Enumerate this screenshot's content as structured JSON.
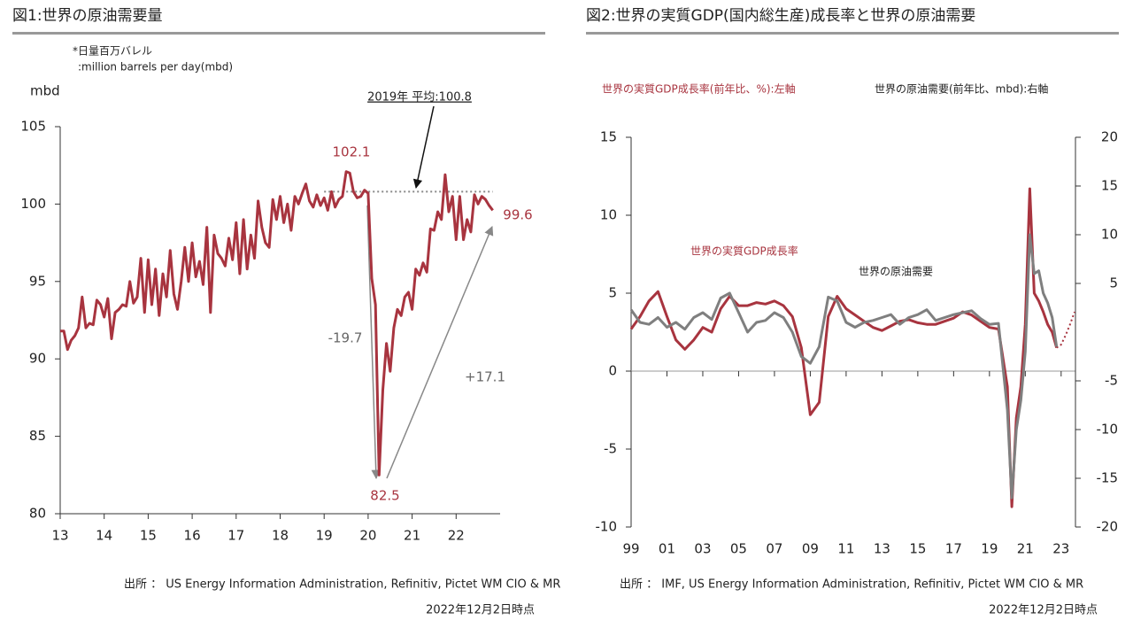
{
  "chart_data": [
    {
      "type": "line",
      "title": "図1:世界の原油需要量",
      "note_lines": [
        "*日量百万バレル",
        ":million barrels per day(mbd)"
      ],
      "ylabel": "mbd",
      "x": [
        2013.0,
        2013.083,
        2013.167,
        2013.25,
        2013.333,
        2013.417,
        2013.5,
        2013.583,
        2013.667,
        2013.75,
        2013.833,
        2013.917,
        2014.0,
        2014.083,
        2014.167,
        2014.25,
        2014.333,
        2014.417,
        2014.5,
        2014.583,
        2014.667,
        2014.75,
        2014.833,
        2014.917,
        2015.0,
        2015.083,
        2015.167,
        2015.25,
        2015.333,
        2015.417,
        2015.5,
        2015.583,
        2015.667,
        2015.75,
        2015.833,
        2015.917,
        2016.0,
        2016.083,
        2016.167,
        2016.25,
        2016.333,
        2016.417,
        2016.5,
        2016.583,
        2016.667,
        2016.75,
        2016.833,
        2016.917,
        2017.0,
        2017.083,
        2017.167,
        2017.25,
        2017.333,
        2017.417,
        2017.5,
        2017.583,
        2017.667,
        2017.75,
        2017.833,
        2017.917,
        2018.0,
        2018.083,
        2018.167,
        2018.25,
        2018.333,
        2018.417,
        2018.5,
        2018.583,
        2018.667,
        2018.75,
        2018.833,
        2018.917,
        2019.0,
        2019.083,
        2019.167,
        2019.25,
        2019.333,
        2019.417,
        2019.5,
        2019.583,
        2019.667,
        2019.75,
        2019.833,
        2019.917,
        2020.0,
        2020.083,
        2020.167,
        2020.25,
        2020.333,
        2020.417,
        2020.5,
        2020.583,
        2020.667,
        2020.75,
        2020.833,
        2020.917,
        2021.0,
        2021.083,
        2021.167,
        2021.25,
        2021.333,
        2021.417,
        2021.5,
        2021.583,
        2021.667,
        2021.75,
        2021.833,
        2021.917,
        2022.0,
        2022.083,
        2022.167,
        2022.25,
        2022.333,
        2022.417,
        2022.5,
        2022.583,
        2022.667,
        2022.75,
        2022.833
      ],
      "series": [
        {
          "color": "#a8343f",
          "values": [
            91.8,
            91.8,
            90.6,
            91.2,
            91.5,
            92.0,
            94.0,
            92.0,
            92.3,
            92.2,
            93.8,
            93.5,
            92.7,
            93.9,
            91.3,
            93.0,
            93.2,
            93.5,
            93.4,
            95.0,
            93.6,
            94.0,
            96.5,
            93.0,
            96.4,
            93.5,
            95.8,
            92.8,
            95.5,
            94.0,
            97.0,
            94.2,
            93.2,
            95.0,
            97.2,
            95.0,
            97.5,
            95.3,
            96.3,
            94.8,
            98.5,
            93.0,
            98.0,
            96.8,
            96.5,
            96.0,
            97.8,
            96.4,
            98.8,
            95.5,
            99.0,
            95.8,
            98.0,
            96.5,
            100.2,
            98.5,
            97.5,
            97.2,
            100.3,
            99.0,
            100.5,
            98.8,
            100.0,
            98.3,
            100.5,
            100.0,
            100.7,
            101.3,
            100.2,
            99.8,
            100.6,
            99.9,
            100.4,
            99.6,
            100.8,
            99.8,
            100.3,
            100.5,
            102.1,
            102.0,
            100.8,
            100.4,
            100.5,
            100.9,
            100.7,
            95.2,
            93.5,
            82.5,
            88.0,
            91.0,
            89.2,
            92.0,
            93.2,
            92.8,
            94.0,
            94.3,
            93.2,
            95.8,
            95.4,
            96.2,
            95.6,
            98.4,
            98.3,
            99.5,
            99.0,
            101.9,
            99.5,
            100.5,
            97.7,
            100.5,
            97.7,
            99.0,
            98.2,
            100.6,
            100.0,
            100.5,
            100.3,
            99.9,
            99.6
          ]
        }
      ],
      "reference_line": {
        "value": 100.8,
        "label": "2019年 平均:100.8",
        "color": "#888888"
      },
      "annotations": [
        "102.1",
        "82.5",
        "99.6",
        "-19.7",
        "+17.1"
      ],
      "xlim": [
        2013,
        2023
      ],
      "xticks": [
        {
          "value": 2013,
          "label": "13"
        },
        {
          "value": 2014,
          "label": "14"
        },
        {
          "value": 2015,
          "label": "15"
        },
        {
          "value": 2016,
          "label": "16"
        },
        {
          "value": 2017,
          "label": "17"
        },
        {
          "value": 2018,
          "label": "18"
        },
        {
          "value": 2019,
          "label": "19"
        },
        {
          "value": 2020,
          "label": "20"
        },
        {
          "value": 2021,
          "label": "21"
        },
        {
          "value": 2022,
          "label": "22"
        }
      ],
      "ylim": [
        80,
        105
      ],
      "yticks": [
        80,
        85,
        90,
        95,
        100,
        105
      ],
      "source": "出所 ： US Energy Information Administration, Refinitiv, Pictet WM CIO & MR",
      "date": "2022年12月2日時点"
    },
    {
      "type": "line",
      "title": "図2:世界の実質GDP(国内総生産)成長率と世界の原油需要",
      "legend_texts": [
        "世界の実質GDP成長率(前年比、%):左軸",
        "世界の原油需要(前年比、mbd):右軸"
      ],
      "x": [
        1999,
        1999.5,
        2000,
        2000.5,
        2001,
        2001.5,
        2002,
        2002.5,
        2003,
        2003.5,
        2004,
        2004.5,
        2005,
        2005.5,
        2006,
        2006.5,
        2007,
        2007.5,
        2008,
        2008.5,
        2009,
        2009.5,
        2010,
        2010.5,
        2011,
        2011.5,
        2012,
        2012.5,
        2013,
        2013.5,
        2014,
        2014.5,
        2015,
        2015.5,
        2016,
        2016.5,
        2017,
        2017.5,
        2018,
        2018.5,
        2019,
        2019.5,
        2020,
        2020.25,
        2020.5,
        2020.75,
        2021,
        2021.25,
        2021.5,
        2021.75,
        2022,
        2022.25,
        2022.5,
        2022.75
      ],
      "series": [
        {
          "name": "世界の実質GDP成長率",
          "color": "#a8343f",
          "values": [
            2.7,
            3.5,
            4.5,
            5.1,
            3.5,
            2.0,
            1.4,
            2.0,
            2.8,
            2.5,
            4.0,
            4.8,
            4.2,
            4.2,
            4.4,
            4.3,
            4.5,
            4.2,
            3.5,
            1.5,
            -2.8,
            -2.0,
            3.5,
            4.8,
            4.0,
            3.6,
            3.2,
            2.8,
            2.6,
            2.9,
            3.2,
            3.3,
            3.1,
            3.0,
            3.0,
            3.2,
            3.4,
            3.8,
            3.6,
            3.2,
            2.8,
            2.7,
            -1.0,
            -8.7,
            -3.0,
            -1.0,
            3.0,
            11.7,
            5.0,
            4.5,
            3.8,
            3.0,
            2.5,
            1.5
          ],
          "forecast": {
            "x": [
              2022.75,
              2023,
              2023.25,
              2023.5,
              2023.75
            ],
            "values": [
              1.5,
              1.7,
              2.3,
              3.0,
              3.8
            ]
          }
        },
        {
          "name": "世界の原油需要",
          "color": "#7f7f7f",
          "axis": "y2",
          "values": [
            2.3,
            1.0,
            0.8,
            1.5,
            0.5,
            1.0,
            0.3,
            1.5,
            2.0,
            1.3,
            3.5,
            4.0,
            2.0,
            0.0,
            1.0,
            1.2,
            2.0,
            1.5,
            0.0,
            -2.5,
            -3.2,
            -1.5,
            3.6,
            3.2,
            1.0,
            0.5,
            1.0,
            1.2,
            1.5,
            1.8,
            0.8,
            1.5,
            1.8,
            2.3,
            1.2,
            1.5,
            1.8,
            2.0,
            2.2,
            1.4,
            0.8,
            0.9,
            -8.0,
            -17.0,
            -10.0,
            -7.0,
            -2.0,
            10.0,
            6.0,
            6.3,
            4.0,
            3.0,
            1.5,
            -1.5
          ]
        }
      ],
      "xlim": [
        1999,
        2023.8
      ],
      "xticks": [
        {
          "value": 1999,
          "label": "99"
        },
        {
          "value": 2001,
          "label": "01"
        },
        {
          "value": 2003,
          "label": "03"
        },
        {
          "value": 2005,
          "label": "05"
        },
        {
          "value": 2007,
          "label": "07"
        },
        {
          "value": 2009,
          "label": "09"
        },
        {
          "value": 2011,
          "label": "11"
        },
        {
          "value": 2013,
          "label": "13"
        },
        {
          "value": 2015,
          "label": "15"
        },
        {
          "value": 2017,
          "label": "17"
        },
        {
          "value": 2019,
          "label": "19"
        },
        {
          "value": 2021,
          "label": "21"
        },
        {
          "value": 2023,
          "label": "23"
        }
      ],
      "ylim": [
        -10,
        15
      ],
      "yticks": [
        -10,
        -5,
        0,
        5,
        10,
        15
      ],
      "y2lim": [
        -20,
        20
      ],
      "y2ticks": [
        -20,
        -15,
        -10,
        -5,
        5,
        10,
        15,
        20
      ],
      "source": "出所 ： IMF, US Energy Information Administration, Refinitiv, Pictet WM CIO & MR",
      "date": "2022年12月2日時点"
    }
  ]
}
